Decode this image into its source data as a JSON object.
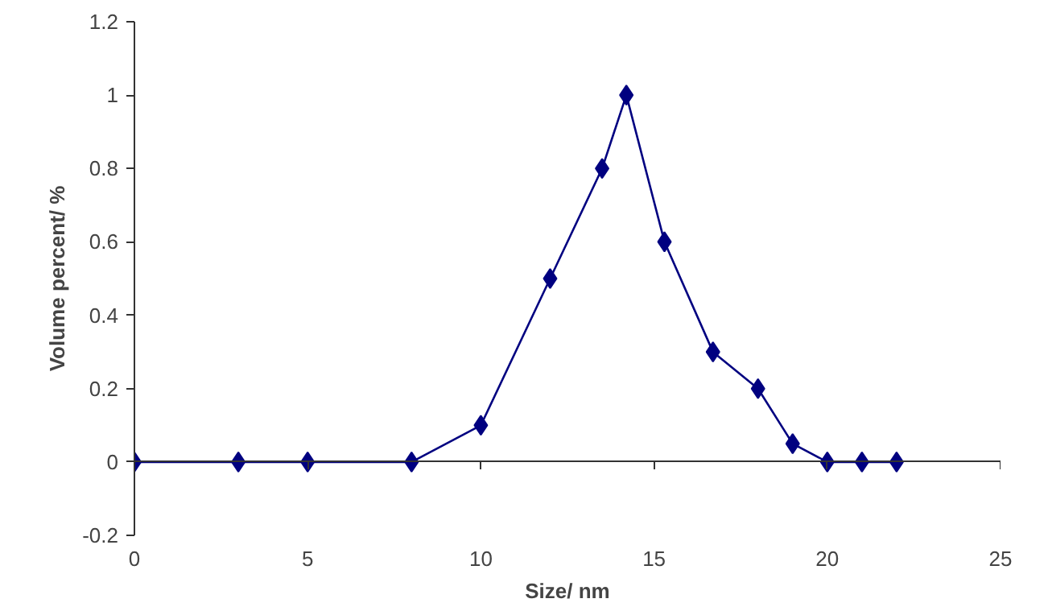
{
  "chart_data": {
    "type": "line",
    "xlabel": "Size/ nm",
    "ylabel": "Volume percent/ %",
    "x": [
      0,
      3,
      5,
      8,
      10,
      12,
      13.5,
      14.2,
      15.3,
      16.7,
      18,
      19,
      20,
      21,
      22
    ],
    "series": [
      {
        "color": "#000080",
        "values": [
          0,
          0,
          0,
          0,
          0.1,
          0.5,
          0.8,
          1,
          0.6,
          0.3,
          0.2,
          0.05,
          0,
          0,
          0
        ]
      }
    ],
    "xlim": [
      0,
      25
    ],
    "xticks": [
      0,
      5,
      10,
      15,
      20,
      25
    ],
    "ylim": [
      -0.2,
      1.2
    ],
    "yticks": [
      -0.2,
      0,
      0.2,
      0.4,
      0.6,
      0.8,
      1,
      1.2
    ],
    "marker": "diamond",
    "line_style": "solid"
  }
}
